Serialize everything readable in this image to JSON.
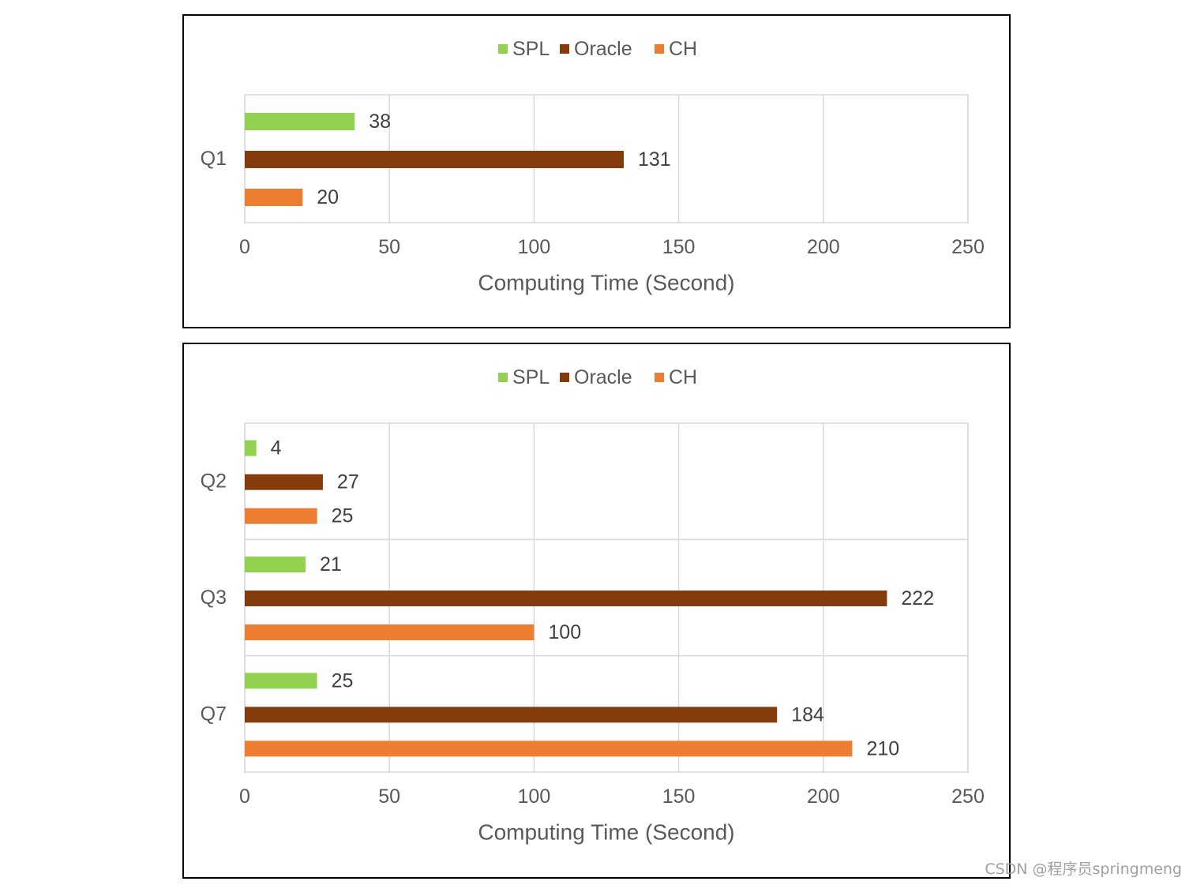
{
  "chart_data": [
    {
      "type": "bar",
      "orientation": "horizontal",
      "categories": [
        "Q1"
      ],
      "series": [
        {
          "name": "SPL",
          "color": "#92d050",
          "values": [
            38
          ]
        },
        {
          "name": "Oracle",
          "color": "#843c0c",
          "values": [
            131
          ]
        },
        {
          "name": "CH",
          "color": "#ed7d31",
          "values": [
            20
          ]
        }
      ],
      "xlabel": "Computing Time (Second)",
      "ylabel": "",
      "xlim": [
        0,
        250
      ],
      "xticks": [
        "0",
        "50",
        "100",
        "150",
        "200",
        "250"
      ],
      "grid": true,
      "legend_position": "top"
    },
    {
      "type": "bar",
      "orientation": "horizontal",
      "categories": [
        "Q2",
        "Q3",
        "Q7"
      ],
      "series": [
        {
          "name": "SPL",
          "color": "#92d050",
          "values": [
            4,
            21,
            25
          ]
        },
        {
          "name": "Oracle",
          "color": "#843c0c",
          "values": [
            27,
            222,
            184
          ]
        },
        {
          "name": "CH",
          "color": "#ed7d31",
          "values": [
            25,
            100,
            210
          ]
        }
      ],
      "xlabel": "Computing Time (Second)",
      "ylabel": "",
      "xlim": [
        0,
        250
      ],
      "xticks": [
        "0",
        "50",
        "100",
        "150",
        "200",
        "250"
      ],
      "grid": true,
      "legend_position": "top"
    }
  ],
  "watermark": "CSDN @程序员springmeng"
}
